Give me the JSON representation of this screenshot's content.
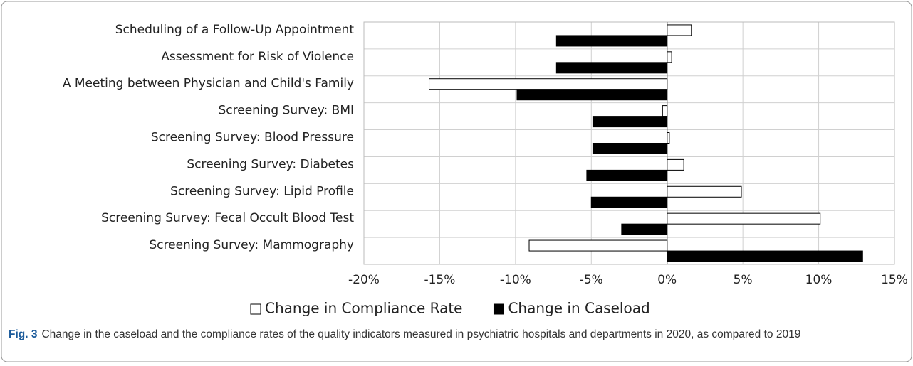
{
  "chart_data": {
    "type": "barh",
    "categories": [
      "Scheduling of a Follow-Up Appointment",
      "Assessment for Risk of Violence",
      "A Meeting between Physician and Child's Family",
      "Screening Survey: BMI",
      "Screening Survey: Blood Pressure",
      "Screening Survey: Diabetes",
      "Screening Survey: Lipid Profile",
      "Screening Survey: Fecal Occult Blood Test",
      "Screening Survey: Mammography"
    ],
    "series": [
      {
        "name": "Change in Compliance Rate",
        "color": "#ffffff",
        "values": [
          1.6,
          0.3,
          -15.7,
          -0.3,
          0.15,
          1.1,
          4.9,
          10.1,
          -9.1
        ]
      },
      {
        "name": "Change in Caseload",
        "color": "#000000",
        "values": [
          -7.3,
          -7.3,
          -9.9,
          -4.9,
          -4.9,
          -5.3,
          -5.0,
          -3.0,
          12.9
        ]
      }
    ],
    "xlim": [
      -20,
      15
    ],
    "xticks": [
      {
        "value": -20,
        "label": "-20%"
      },
      {
        "value": -15,
        "label": "-15%"
      },
      {
        "value": -10,
        "label": "-10%"
      },
      {
        "value": -5,
        "label": "-5%"
      },
      {
        "value": 0,
        "label": "0%"
      },
      {
        "value": 5,
        "label": "5%"
      },
      {
        "value": 10,
        "label": "10%"
      },
      {
        "value": 15,
        "label": "15%"
      }
    ],
    "grid": true,
    "legend": "bottom",
    "caption_label": "Fig. 3",
    "caption_text": "Change in the caseload and the compliance rates of the quality indicators measured in psychiatric hospitals and departments in 2020, as compared to 2019"
  }
}
